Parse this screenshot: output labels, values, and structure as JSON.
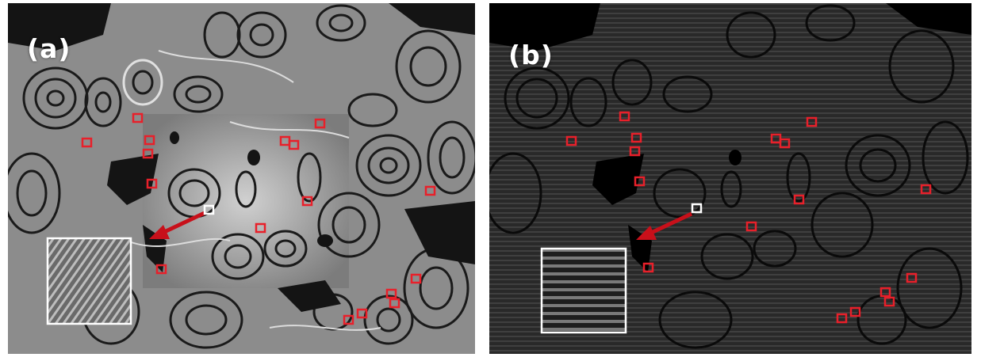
{
  "panels": [
    {
      "label": "(a)",
      "style": "grayscale fluid marbling texture"
    },
    {
      "label": "(b)",
      "style": "dark texture with horizontal stripe artifacts"
    }
  ],
  "colors": {
    "marker": "#e8202a",
    "arrow": "#c8101a",
    "highlight_marker": "#ffffff",
    "inset_border": "#ffffff",
    "panel_a_base": "#8a8a8a",
    "panel_b_base": "#262626"
  },
  "marker_count_per_panel": 20,
  "icons": [
    "red-square-marker",
    "white-square-marker",
    "red-arrow",
    "zoom-inset"
  ]
}
